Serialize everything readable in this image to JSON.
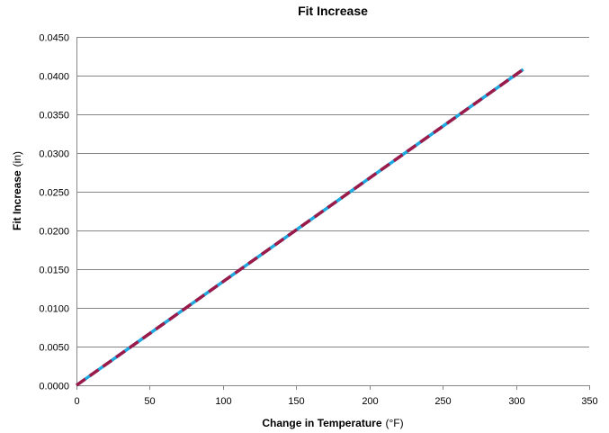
{
  "chart_data": {
    "type": "line",
    "title": "Fit Increase",
    "xlabel_main": "Change in Temperature",
    "xlabel_unit": "(°F)",
    "ylabel_main": "Fit Increase",
    "ylabel_unit": "(in)",
    "xlim": [
      0,
      350
    ],
    "ylim": [
      0,
      0.045
    ],
    "x_ticks": [
      "0",
      "50",
      "100",
      "150",
      "200",
      "250",
      "300",
      "350"
    ],
    "y_ticks": [
      "0.0000",
      "0.0050",
      "0.0100",
      "0.0150",
      "0.0200",
      "0.0250",
      "0.0300",
      "0.0350",
      "0.0400",
      "0.0450"
    ],
    "grid": true,
    "series": [
      {
        "x": [
          0,
          305
        ],
        "y": [
          0,
          0.0408
        ],
        "color": "#1fa7df",
        "style": "solid"
      },
      {
        "x": [
          0,
          305
        ],
        "y": [
          0,
          0.0408
        ],
        "color": "#9b1a4a",
        "style": "dashed"
      }
    ]
  }
}
